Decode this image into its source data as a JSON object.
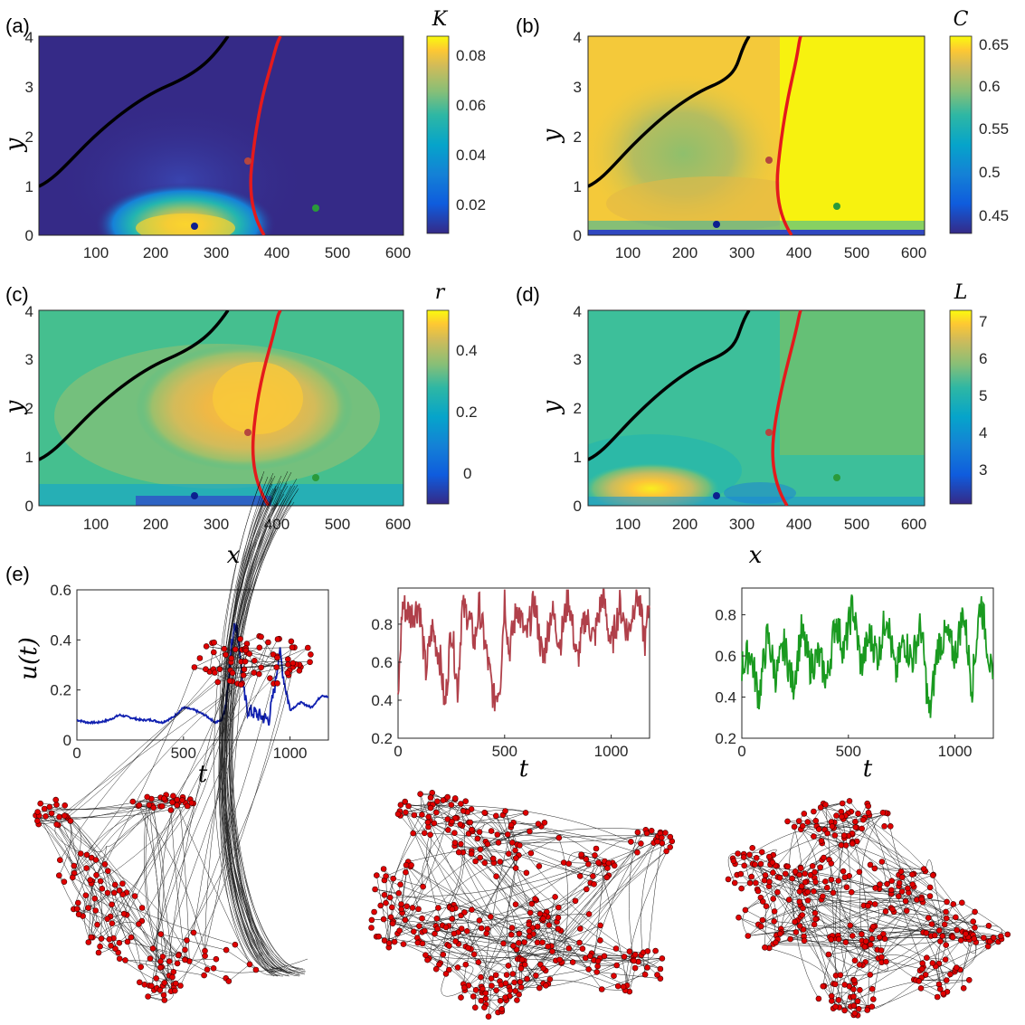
{
  "colors": {
    "black_curve": "#000000",
    "red_curve": "#e41a1c",
    "blue_point": "#0c1f8f",
    "red_point": "#b5463f",
    "green_point": "#2a9a3a",
    "node_fill": "#e00000",
    "ts_blue": "#1020b0",
    "ts_red": "#b0404a",
    "ts_green": "#1a9a20"
  },
  "panels": [
    {
      "tag": "(a)",
      "var": "K",
      "cb_ticks": [
        "0.02",
        "0.04",
        "0.06",
        "0.08"
      ],
      "cb_range": [
        0.005,
        0.085
      ]
    },
    {
      "tag": "(b)",
      "var": "C",
      "cb_ticks": [
        "0.45",
        "0.5",
        "0.55",
        "0.6",
        "0.65"
      ],
      "cb_range": [
        0.43,
        0.66
      ]
    },
    {
      "tag": "(c)",
      "var": "r",
      "cb_ticks": [
        "0",
        "0.2",
        "0.4"
      ],
      "cb_range": [
        -0.1,
        0.52
      ]
    },
    {
      "tag": "(d)",
      "var": "L",
      "cb_ticks": [
        "3",
        "4",
        "5",
        "6",
        "7"
      ],
      "cb_range": [
        2.2,
        7.4
      ]
    }
  ],
  "map_axes": {
    "xlabel": "x",
    "ylabel": "y",
    "x_ticks": [
      "100",
      "200",
      "300",
      "400",
      "500",
      "600"
    ],
    "y_ticks": [
      "0",
      "1",
      "2",
      "3",
      "4"
    ]
  },
  "panel_e": {
    "tag": "(e)",
    "ylabel": "u(t)",
    "xlabel": "t"
  },
  "chart_data": [
    {
      "type": "heatmap",
      "title": "(a)",
      "colorbar_label": "K",
      "xlim": [
        30,
        610
      ],
      "ylim": [
        0,
        4
      ],
      "black_curve": {
        "x": [
          30,
          50,
          80,
          110,
          140,
          170,
          200,
          230,
          260,
          290,
          310
        ],
        "y": [
          1.0,
          1.15,
          1.5,
          1.8,
          2.1,
          2.4,
          2.7,
          3.0,
          3.3,
          3.7,
          4.0
        ]
      },
      "red_curve": {
        "x": [
          375,
          365,
          355,
          350,
          347,
          347,
          350,
          356,
          364,
          373,
          384,
          393
        ],
        "y": [
          0,
          0.4,
          0.8,
          1.2,
          1.6,
          2.0,
          2.4,
          2.8,
          3.2,
          3.6,
          3.9,
          4.0
        ]
      },
      "points": [
        {
          "x": 250,
          "y": 0.2,
          "color": "blue"
        },
        {
          "x": 342,
          "y": 1.5,
          "color": "red"
        },
        {
          "x": 458,
          "y": 0.57,
          "color": "green"
        }
      ]
    },
    {
      "type": "heatmap",
      "title": "(b)",
      "colorbar_label": "C",
      "xlim": [
        30,
        610
      ],
      "ylim": [
        0,
        4
      ],
      "points": [
        {
          "x": 250,
          "y": 0.2,
          "color": "blue"
        },
        {
          "x": 342,
          "y": 1.5,
          "color": "red"
        },
        {
          "x": 458,
          "y": 0.57,
          "color": "green"
        }
      ]
    },
    {
      "type": "heatmap",
      "title": "(c)",
      "colorbar_label": "r",
      "xlim": [
        30,
        610
      ],
      "ylim": [
        0,
        4
      ],
      "points": [
        {
          "x": 250,
          "y": 0.2,
          "color": "blue"
        },
        {
          "x": 342,
          "y": 1.5,
          "color": "red"
        },
        {
          "x": 458,
          "y": 0.57,
          "color": "green"
        }
      ]
    },
    {
      "type": "heatmap",
      "title": "(d)",
      "colorbar_label": "L",
      "xlim": [
        30,
        610
      ],
      "ylim": [
        0,
        4
      ],
      "points": [
        {
          "x": 250,
          "y": 0.2,
          "color": "blue"
        },
        {
          "x": 342,
          "y": 1.5,
          "color": "red"
        },
        {
          "x": 458,
          "y": 0.57,
          "color": "green"
        }
      ]
    },
    {
      "type": "line",
      "title": "(e) left",
      "xlabel": "t",
      "ylabel": "u(t)",
      "xlim": [
        0,
        1180
      ],
      "ylim": [
        0,
        0.6
      ],
      "x_ticks": [
        "0",
        "500",
        "1000"
      ],
      "y_ticks": [
        "0",
        "0.2",
        "0.4",
        "0.6"
      ],
      "x": [
        0,
        50,
        100,
        150,
        200,
        250,
        300,
        350,
        400,
        450,
        500,
        550,
        600,
        650,
        680,
        700,
        720,
        740,
        760,
        780,
        800,
        850,
        900,
        930,
        950,
        970,
        1000,
        1050,
        1100,
        1150,
        1180
      ],
      "y": [
        0.08,
        0.07,
        0.07,
        0.08,
        0.1,
        0.09,
        0.08,
        0.08,
        0.07,
        0.09,
        0.13,
        0.12,
        0.1,
        0.07,
        0.08,
        0.15,
        0.33,
        0.48,
        0.4,
        0.2,
        0.12,
        0.1,
        0.08,
        0.22,
        0.36,
        0.25,
        0.12,
        0.15,
        0.13,
        0.18,
        0.17
      ]
    },
    {
      "type": "line",
      "title": "(e) middle",
      "xlabel": "t",
      "xlim": [
        0,
        1180
      ],
      "ylim": [
        0.2,
        0.99
      ],
      "x_ticks": [
        "0",
        "500",
        "1000"
      ],
      "y_ticks": [
        "0.2",
        "0.4",
        "0.6",
        "0.8"
      ],
      "x": [
        0,
        20,
        60,
        100,
        130,
        160,
        200,
        220,
        250,
        280,
        300,
        330,
        360,
        380,
        400,
        450,
        480,
        500,
        520,
        560,
        600,
        640,
        680,
        720,
        760,
        800,
        840,
        880,
        920,
        960,
        1000,
        1040,
        1080,
        1120,
        1160,
        1180
      ],
      "y": [
        0.4,
        0.9,
        0.85,
        0.9,
        0.55,
        0.78,
        0.6,
        0.35,
        0.8,
        0.45,
        0.88,
        0.85,
        0.7,
        0.9,
        0.75,
        0.4,
        0.5,
        0.95,
        0.65,
        0.9,
        0.72,
        0.92,
        0.6,
        0.88,
        0.7,
        0.95,
        0.6,
        0.85,
        0.72,
        0.96,
        0.68,
        0.9,
        0.75,
        0.98,
        0.7,
        0.93
      ]
    },
    {
      "type": "line",
      "title": "(e) right",
      "xlabel": "t",
      "xlim": [
        0,
        1180
      ],
      "ylim": [
        0.2,
        0.93
      ],
      "x_ticks": [
        "0",
        "500",
        "1000"
      ],
      "y_ticks": [
        "0.2",
        "0.4",
        "0.6",
        "0.8"
      ],
      "x": [
        0,
        40,
        80,
        120,
        160,
        200,
        240,
        280,
        320,
        360,
        400,
        440,
        480,
        520,
        560,
        600,
        640,
        680,
        720,
        760,
        800,
        840,
        880,
        920,
        960,
        1000,
        1040,
        1080,
        1120,
        1160,
        1180
      ],
      "y": [
        0.55,
        0.62,
        0.4,
        0.7,
        0.5,
        0.65,
        0.45,
        0.72,
        0.55,
        0.6,
        0.48,
        0.78,
        0.62,
        0.85,
        0.55,
        0.7,
        0.6,
        0.82,
        0.5,
        0.68,
        0.58,
        0.75,
        0.3,
        0.65,
        0.7,
        0.6,
        0.82,
        0.45,
        0.88,
        0.6,
        0.42
      ]
    }
  ]
}
